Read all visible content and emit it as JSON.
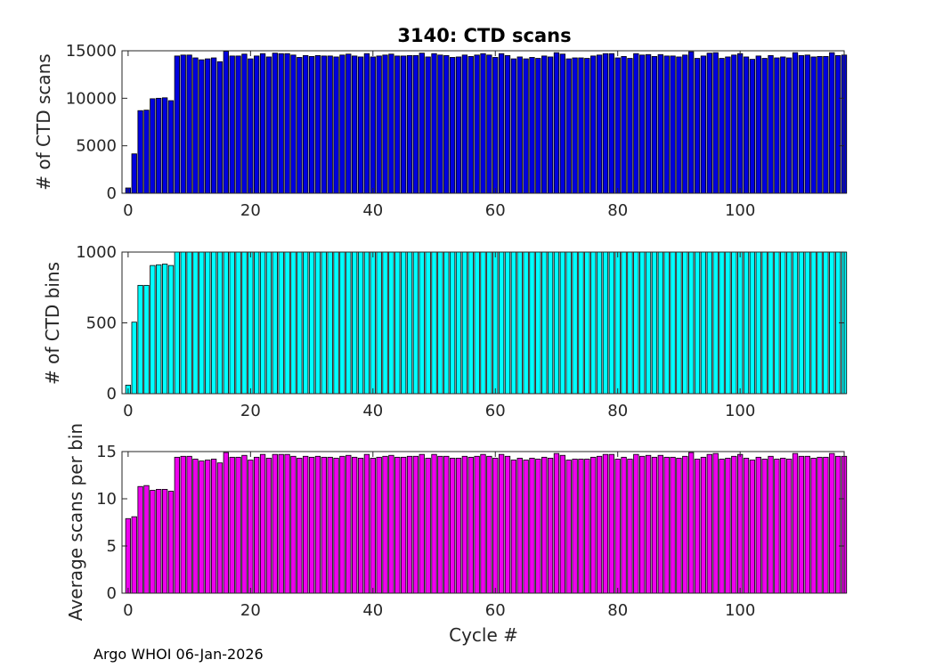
{
  "colors": {
    "scans": "#0000e0",
    "bins": "#00ffff",
    "avg": "#ee00ee",
    "edge": "#000000",
    "axis": "#262626"
  },
  "footer": "Argo WHOI 06-Jan-2026",
  "chart_data": [
    {
      "type": "bar",
      "title": "3140: CTD scans",
      "xlabel": "",
      "ylabel": "# of CTD scans",
      "xlim": [
        -1,
        117
      ],
      "ylim": [
        0,
        15000
      ],
      "xticks": [
        0,
        20,
        40,
        60,
        80,
        100
      ],
      "yticks": [
        0,
        5000,
        10000,
        15000
      ],
      "x_start": 0,
      "values": [
        560,
        4150,
        8700,
        8750,
        9950,
        10000,
        10050,
        9750,
        14450,
        14550,
        14550,
        14250,
        14050,
        14150,
        14250,
        13850,
        14950,
        14450,
        14450,
        14650,
        14150,
        14450,
        14700,
        14350,
        14750,
        14700,
        14700,
        14550,
        14300,
        14500,
        14400,
        14500,
        14450,
        14450,
        14350,
        14550,
        14650,
        14450,
        14350,
        14700,
        14350,
        14450,
        14550,
        14650,
        14450,
        14450,
        14500,
        14500,
        14750,
        14350,
        14700,
        14550,
        14500,
        14300,
        14350,
        14550,
        14400,
        14550,
        14700,
        14550,
        14300,
        14700,
        14500,
        14150,
        14350,
        14150,
        14300,
        14200,
        14450,
        14350,
        14800,
        14650,
        14150,
        14250,
        14250,
        14200,
        14450,
        14550,
        14700,
        14700,
        14250,
        14400,
        14200,
        14700,
        14550,
        14600,
        14400,
        14600,
        14450,
        14450,
        14350,
        14550,
        14900,
        14200,
        14450,
        14750,
        14800,
        14200,
        14350,
        14550,
        14700,
        14350,
        14100,
        14450,
        14200,
        14500,
        14250,
        14350,
        14250,
        14800,
        14500,
        14550,
        14350,
        14400,
        14400,
        14800,
        14500,
        14550
      ]
    },
    {
      "type": "bar",
      "title": "",
      "xlabel": "",
      "ylabel": "# of CTD bins",
      "xlim": [
        -1,
        117
      ],
      "ylim": [
        0,
        1000
      ],
      "xticks": [
        0,
        20,
        40,
        60,
        80,
        100
      ],
      "yticks": [
        0,
        500,
        1000
      ],
      "x_start": 0,
      "values": [
        60,
        505,
        765,
        765,
        905,
        910,
        915,
        905,
        1003,
        1003,
        1003,
        1003,
        1003,
        1003,
        1003,
        1003,
        1003,
        1003,
        1003,
        1003,
        1003,
        1003,
        1003,
        1003,
        1003,
        1003,
        1003,
        1003,
        1003,
        1003,
        1003,
        1003,
        1003,
        1003,
        1003,
        1003,
        1003,
        1003,
        1003,
        1003,
        1003,
        1003,
        1003,
        1003,
        1003,
        1003,
        1003,
        1003,
        1003,
        1003,
        1003,
        1003,
        1003,
        1003,
        1003,
        1003,
        1003,
        1003,
        1003,
        1003,
        1003,
        1003,
        1003,
        1003,
        1003,
        1003,
        1003,
        1003,
        1003,
        1003,
        1003,
        1003,
        1003,
        1003,
        1003,
        1003,
        1003,
        1003,
        1003,
        1003,
        1003,
        1003,
        1003,
        1003,
        1003,
        1003,
        1003,
        1003,
        1003,
        1003,
        1003,
        1003,
        1003,
        1003,
        1003,
        1003,
        1003,
        1003,
        1003,
        1003,
        1003,
        1003,
        1003,
        1003,
        1003,
        1003,
        1003,
        1003,
        1003,
        1003,
        1003,
        1003,
        1003,
        1003,
        1003,
        1003,
        1003,
        1003
      ]
    },
    {
      "type": "bar",
      "title": "",
      "xlabel": "Cycle #",
      "ylabel": "Average scans per bin",
      "xlim": [
        -1,
        117
      ],
      "ylim": [
        0,
        15
      ],
      "xticks": [
        0,
        20,
        40,
        60,
        80,
        100
      ],
      "yticks": [
        0,
        5,
        10,
        15
      ],
      "x_start": 0,
      "values": [
        7.9,
        8.1,
        11.3,
        11.4,
        10.9,
        11.0,
        11.0,
        10.8,
        14.4,
        14.5,
        14.5,
        14.2,
        14.0,
        14.1,
        14.2,
        13.8,
        14.9,
        14.4,
        14.4,
        14.6,
        14.1,
        14.4,
        14.7,
        14.3,
        14.7,
        14.7,
        14.7,
        14.5,
        14.3,
        14.5,
        14.4,
        14.5,
        14.4,
        14.4,
        14.3,
        14.5,
        14.6,
        14.4,
        14.3,
        14.7,
        14.3,
        14.4,
        14.5,
        14.6,
        14.4,
        14.4,
        14.5,
        14.5,
        14.7,
        14.3,
        14.7,
        14.5,
        14.5,
        14.3,
        14.3,
        14.5,
        14.4,
        14.5,
        14.7,
        14.5,
        14.3,
        14.7,
        14.5,
        14.1,
        14.3,
        14.1,
        14.3,
        14.2,
        14.4,
        14.3,
        14.8,
        14.6,
        14.1,
        14.2,
        14.2,
        14.2,
        14.4,
        14.5,
        14.7,
        14.7,
        14.2,
        14.4,
        14.2,
        14.7,
        14.5,
        14.6,
        14.4,
        14.6,
        14.4,
        14.4,
        14.3,
        14.5,
        14.9,
        14.2,
        14.4,
        14.7,
        14.8,
        14.2,
        14.3,
        14.5,
        14.7,
        14.3,
        14.1,
        14.4,
        14.2,
        14.5,
        14.2,
        14.3,
        14.2,
        14.8,
        14.5,
        14.5,
        14.3,
        14.4,
        14.4,
        14.8,
        14.5,
        14.5
      ]
    }
  ]
}
